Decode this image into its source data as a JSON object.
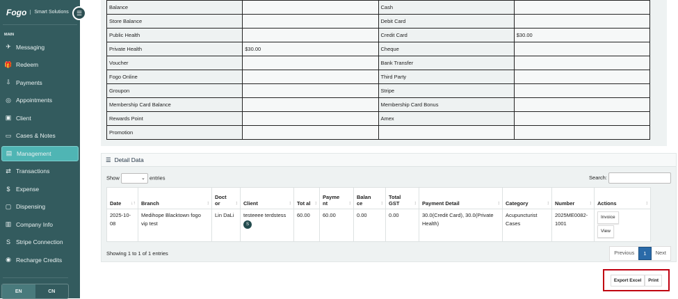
{
  "brand": {
    "logo": "Fogo",
    "tagline": "Smart Solutions"
  },
  "sidebar": {
    "section": "MAIN",
    "items": [
      {
        "label": "Messaging",
        "icon": "send-icon",
        "glyph": "✈"
      },
      {
        "label": "Redeem",
        "icon": "gift-icon",
        "glyph": "🎁"
      },
      {
        "label": "Payments",
        "icon": "payment-icon",
        "glyph": "⇩"
      },
      {
        "label": "Appointments",
        "icon": "compass-icon",
        "glyph": "◎"
      },
      {
        "label": "Client",
        "icon": "client-card-icon",
        "glyph": "▣"
      },
      {
        "label": "Cases & Notes",
        "icon": "laptop-icon",
        "glyph": "▭"
      },
      {
        "label": "Management",
        "icon": "folder-icon",
        "glyph": "▤",
        "active": true
      },
      {
        "label": "Transactions",
        "icon": "transactions-icon",
        "glyph": "⇄"
      },
      {
        "label": "Expense",
        "icon": "dollar-icon",
        "glyph": "$"
      },
      {
        "label": "Dispensing",
        "icon": "bottle-icon",
        "glyph": "▢"
      },
      {
        "label": "Company Info",
        "icon": "building-icon",
        "glyph": "▥"
      },
      {
        "label": "Stripe Connection",
        "icon": "stripe-icon",
        "glyph": "S"
      },
      {
        "label": "Recharge Credits",
        "icon": "credits-icon",
        "glyph": "◉"
      }
    ],
    "lang": {
      "en": "EN",
      "cn": "CN"
    }
  },
  "payments": [
    [
      "Balance",
      "",
      "Cash",
      ""
    ],
    [
      "Store Balance",
      "",
      "Debit Card",
      ""
    ],
    [
      "Public Health",
      "",
      "Credit Card",
      "$30.00"
    ],
    [
      "Private Health",
      "$30.00",
      "Cheque",
      ""
    ],
    [
      "Voucher",
      "",
      "Bank Transfer",
      ""
    ],
    [
      "Fogo Online",
      "",
      "Third Party",
      ""
    ],
    [
      "Groupon",
      "",
      "Stripe",
      ""
    ],
    [
      "Membership Card Balance",
      "",
      "Membership Card Bonus",
      ""
    ],
    [
      "Rewards Point",
      "",
      "Amex",
      ""
    ],
    [
      "Promotion",
      "",
      "",
      ""
    ]
  ],
  "detail": {
    "title": "Detail Data",
    "show": "Show",
    "entries": "entries",
    "search": "Search:",
    "columns": [
      "Date",
      "Branch",
      "Doct or",
      "Client",
      "Tot al",
      "Payme nt",
      "Balan ce",
      "Total GST",
      "Payment Detail",
      "Category",
      "Number",
      "Actions"
    ],
    "row": {
      "date": "2025-10-08",
      "branch": "Medihope Blacktown fogo vip test",
      "doctor": "Lin DaLi",
      "client": "testeeee terdstess",
      "client_badge": "S",
      "total": "60.00",
      "payment": "60.00",
      "balance": "0.00",
      "gst": "0.00",
      "payment_detail": "30.0(Credit Card), 30.0(Private Health)",
      "category": "Acupuncturist Cases",
      "number": "2025ME0082-1001",
      "invoice": "Invoice",
      "view": "View"
    },
    "showing": "Showing 1 to 1 of 1 entries",
    "prev": "Previous",
    "page": "1",
    "next": "Next"
  },
  "actions": {
    "export": "Export Excel",
    "print": "Print"
  }
}
